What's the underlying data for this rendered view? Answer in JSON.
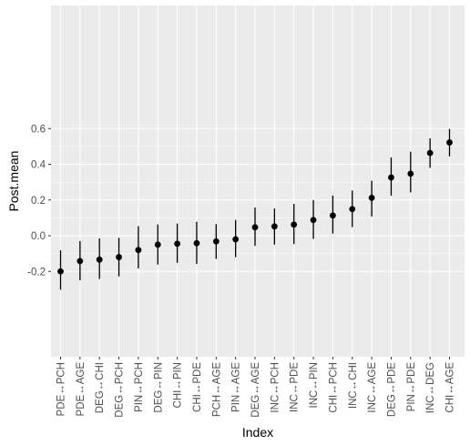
{
  "chart_data": {
    "type": "scatter",
    "xlabel": "Index",
    "ylabel": "Post.mean",
    "ylim": [
      -0.35,
      0.63
    ],
    "yticks": [
      -0.2,
      0.0,
      0.2,
      0.4,
      0.6
    ],
    "ytick_labels": [
      "-0.2",
      "0.0",
      "0.2",
      "0.4",
      "0.6"
    ],
    "grid": true,
    "categories": [
      "PDE↔PCH",
      "PDE↔AGE",
      "DEG↔CHI",
      "DEG↔PCH",
      "PIN↔PCH",
      "DEG↔PIN",
      "CHI↔PIN",
      "CHI↔PDE",
      "PCH↔AGE",
      "PIN↔AGE",
      "DEG↔AGE",
      "INC↔PCH",
      "INC↔PDE",
      "INC↔PIN",
      "CHI↔PCH",
      "INC↔CHI",
      "INC↔AGE",
      "DEG↔PDE",
      "PIN↔PDE",
      "INC↔DEG",
      "CHI↔AGE"
    ],
    "values": [
      -0.2,
      -0.142,
      -0.134,
      -0.12,
      -0.08,
      -0.05,
      -0.045,
      -0.042,
      -0.032,
      -0.02,
      0.047,
      0.052,
      0.062,
      0.088,
      0.113,
      0.149,
      0.212,
      0.326,
      0.347,
      0.463,
      0.522
    ],
    "lower": [
      -0.302,
      -0.25,
      -0.242,
      -0.228,
      -0.183,
      -0.162,
      -0.152,
      -0.158,
      -0.13,
      -0.12,
      -0.057,
      -0.05,
      -0.047,
      -0.018,
      0.012,
      0.048,
      0.108,
      0.224,
      0.242,
      0.38,
      0.444
    ],
    "upper": [
      -0.082,
      -0.03,
      -0.015,
      -0.012,
      0.053,
      0.063,
      0.068,
      0.078,
      0.065,
      0.088,
      0.158,
      0.152,
      0.178,
      0.2,
      0.225,
      0.253,
      0.308,
      0.438,
      0.47,
      0.545,
      0.598
    ]
  }
}
